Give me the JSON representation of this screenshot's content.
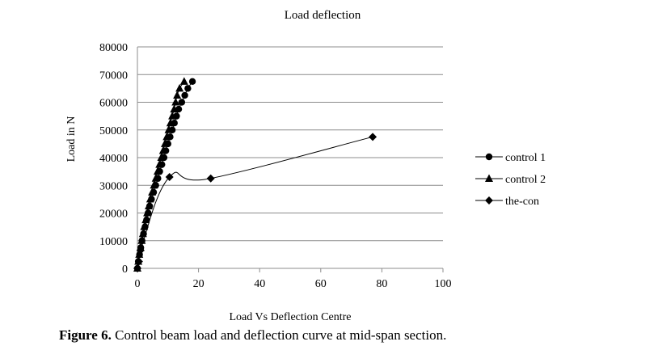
{
  "chart_data": {
    "type": "line",
    "title": "Load deflection",
    "xlabel": "Load Vs Deflection Centre",
    "ylabel": "Load in N",
    "xlim": [
      0,
      100
    ],
    "ylim": [
      0,
      80000
    ],
    "x_ticks": [
      0,
      20,
      40,
      60,
      80,
      100
    ],
    "y_ticks": [
      0,
      10000,
      20000,
      30000,
      40000,
      50000,
      60000,
      70000,
      80000
    ],
    "grid": "horizontal",
    "legend": "right",
    "series": [
      {
        "name": "control 1",
        "marker": "circle",
        "points": [
          [
            0,
            0
          ],
          [
            0.3,
            2500
          ],
          [
            0.7,
            5000
          ],
          [
            1.1,
            7500
          ],
          [
            1.5,
            10000
          ],
          [
            2.0,
            12500
          ],
          [
            2.5,
            15000
          ],
          [
            3.0,
            17500
          ],
          [
            3.5,
            20000
          ],
          [
            4.0,
            22500
          ],
          [
            4.6,
            25000
          ],
          [
            5.3,
            27500
          ],
          [
            6.0,
            30000
          ],
          [
            6.7,
            32500
          ],
          [
            7.3,
            35000
          ],
          [
            8.0,
            37500
          ],
          [
            8.7,
            40000
          ],
          [
            9.3,
            42500
          ],
          [
            10.0,
            45000
          ],
          [
            10.7,
            47500
          ],
          [
            11.4,
            50000
          ],
          [
            12.1,
            52500
          ],
          [
            12.8,
            55000
          ],
          [
            13.5,
            57500
          ],
          [
            14.5,
            60000
          ],
          [
            15.5,
            62500
          ],
          [
            16.5,
            65000
          ],
          [
            18.0,
            67500
          ]
        ]
      },
      {
        "name": "control 2",
        "marker": "triangle",
        "points": [
          [
            0,
            0
          ],
          [
            0.3,
            2500
          ],
          [
            0.6,
            5000
          ],
          [
            1.0,
            7500
          ],
          [
            1.4,
            10000
          ],
          [
            1.8,
            12500
          ],
          [
            2.2,
            15000
          ],
          [
            2.7,
            17500
          ],
          [
            3.2,
            20000
          ],
          [
            3.7,
            22500
          ],
          [
            4.2,
            25000
          ],
          [
            4.8,
            27500
          ],
          [
            5.4,
            30000
          ],
          [
            6.0,
            32500
          ],
          [
            6.6,
            35000
          ],
          [
            7.2,
            37500
          ],
          [
            7.8,
            40000
          ],
          [
            8.4,
            42500
          ],
          [
            9.0,
            45000
          ],
          [
            9.6,
            47500
          ],
          [
            10.2,
            50000
          ],
          [
            10.8,
            52500
          ],
          [
            11.4,
            55000
          ],
          [
            12.0,
            57500
          ],
          [
            12.5,
            60000
          ],
          [
            13.0,
            62500
          ],
          [
            13.8,
            65000
          ],
          [
            15.3,
            67500
          ]
        ]
      },
      {
        "name": "the-con",
        "marker": "diamond",
        "points": [
          [
            0,
            0
          ],
          [
            0.5,
            2500
          ],
          [
            1.0,
            6500
          ],
          [
            10.5,
            33000
          ],
          [
            24,
            32500
          ],
          [
            77,
            47500
          ]
        ]
      }
    ]
  },
  "caption": {
    "label": "Figure 6.",
    "text": " Control beam load and deflection curve at mid-span section."
  }
}
